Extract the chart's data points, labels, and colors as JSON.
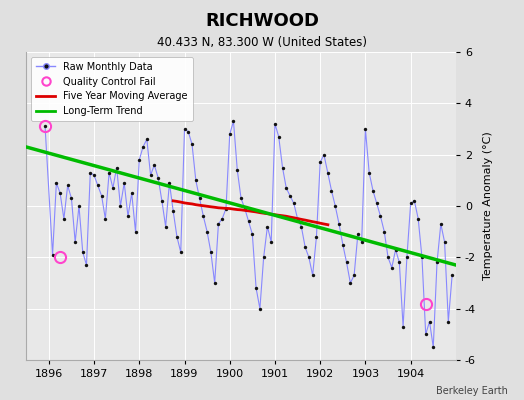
{
  "title": "RICHWOOD",
  "subtitle": "40.433 N, 83.300 W (United States)",
  "ylabel": "Temperature Anomaly (°C)",
  "credit": "Berkeley Earth",
  "ylim": [
    -6,
    6
  ],
  "xlim": [
    1895.5,
    1905.0
  ],
  "xticks": [
    1896,
    1897,
    1898,
    1899,
    1900,
    1901,
    1902,
    1903,
    1904
  ],
  "yticks": [
    -6,
    -4,
    -2,
    0,
    2,
    4,
    6
  ],
  "fig_bg": "#e0e0e0",
  "ax_bg": "#e8e8e8",
  "grid_color": "#ffffff",
  "raw_line_color": "#8888ff",
  "raw_dot_color": "#111111",
  "moving_avg_color": "#dd0000",
  "trend_color": "#00bb00",
  "qc_color": "#ff44cc",
  "monthly_x": [
    1895.917,
    1896.083,
    1896.167,
    1896.25,
    1896.333,
    1896.417,
    1896.5,
    1896.583,
    1896.667,
    1896.75,
    1896.833,
    1896.917,
    1897.0,
    1897.083,
    1897.167,
    1897.25,
    1897.333,
    1897.417,
    1897.5,
    1897.583,
    1897.667,
    1897.75,
    1897.833,
    1897.917,
    1898.0,
    1898.083,
    1898.167,
    1898.25,
    1898.333,
    1898.417,
    1898.5,
    1898.583,
    1898.667,
    1898.75,
    1898.833,
    1898.917,
    1899.0,
    1899.083,
    1899.167,
    1899.25,
    1899.333,
    1899.417,
    1899.5,
    1899.583,
    1899.667,
    1899.75,
    1899.833,
    1899.917,
    1900.0,
    1900.083,
    1900.167,
    1900.25,
    1900.333,
    1900.417,
    1900.5,
    1900.583,
    1900.667,
    1900.75,
    1900.833,
    1900.917,
    1901.0,
    1901.083,
    1901.167,
    1901.25,
    1901.333,
    1901.417,
    1901.5,
    1901.583,
    1901.667,
    1901.75,
    1901.833,
    1901.917,
    1902.0,
    1902.083,
    1902.167,
    1902.25,
    1902.333,
    1902.417,
    1902.5,
    1902.583,
    1902.667,
    1902.75,
    1902.833,
    1902.917,
    1903.0,
    1903.083,
    1903.167,
    1903.25,
    1903.333,
    1903.417,
    1903.5,
    1903.583,
    1903.667,
    1903.75,
    1903.833,
    1903.917,
    1904.0,
    1904.083,
    1904.167,
    1904.25,
    1904.333,
    1904.417,
    1904.5,
    1904.583,
    1904.667,
    1904.75,
    1904.833,
    1904.917
  ],
  "monthly_y": [
    3.1,
    -1.9,
    0.9,
    0.5,
    -0.5,
    0.8,
    0.3,
    -1.4,
    0.0,
    -1.8,
    -2.3,
    1.3,
    1.2,
    0.8,
    0.4,
    -0.5,
    1.3,
    0.7,
    1.5,
    0.0,
    0.9,
    -0.4,
    0.5,
    -1.0,
    1.8,
    2.3,
    2.6,
    1.2,
    1.6,
    1.1,
    0.2,
    -0.8,
    0.9,
    -0.2,
    -1.2,
    -1.8,
    3.0,
    2.9,
    2.4,
    1.0,
    0.3,
    -0.4,
    -1.0,
    -1.8,
    -3.0,
    -0.7,
    -0.5,
    -0.1,
    2.8,
    3.3,
    1.4,
    0.3,
    -0.1,
    -0.6,
    -1.1,
    -3.2,
    -4.0,
    -2.0,
    -0.8,
    -1.4,
    3.2,
    2.7,
    1.5,
    0.7,
    0.4,
    0.1,
    -0.5,
    -0.8,
    -1.6,
    -2.0,
    -2.7,
    -1.2,
    1.7,
    2.0,
    1.3,
    0.6,
    0.0,
    -0.7,
    -1.5,
    -2.2,
    -3.0,
    -2.7,
    -1.1,
    -1.4,
    3.0,
    1.3,
    0.6,
    0.1,
    -0.4,
    -1.0,
    -2.0,
    -2.4,
    -1.7,
    -2.2,
    -4.7,
    -2.0,
    0.1,
    0.2,
    -0.5,
    -2.0,
    -5.0,
    -4.5,
    -5.5,
    -2.2,
    -0.7,
    -1.4,
    -4.5,
    -2.7
  ],
  "moving_avg_x": [
    1898.75,
    1898.83,
    1898.92,
    1899.0,
    1899.08,
    1899.17,
    1899.25,
    1899.33,
    1899.42,
    1899.5,
    1899.58,
    1899.67,
    1899.75,
    1899.83,
    1899.92,
    1900.0,
    1900.08,
    1900.17,
    1900.25,
    1900.33,
    1900.42,
    1900.5,
    1900.58,
    1900.67,
    1900.75,
    1900.83,
    1900.92,
    1901.0,
    1901.08,
    1901.17,
    1901.25,
    1901.33,
    1901.42,
    1901.5,
    1901.58,
    1901.67,
    1901.75,
    1901.83,
    1901.92,
    1902.0,
    1902.08,
    1902.17
  ],
  "moving_avg_y": [
    0.2,
    0.18,
    0.15,
    0.12,
    0.1,
    0.08,
    0.05,
    0.03,
    0.01,
    -0.01,
    -0.03,
    -0.05,
    -0.07,
    -0.08,
    -0.09,
    -0.1,
    -0.12,
    -0.14,
    -0.15,
    -0.17,
    -0.19,
    -0.21,
    -0.23,
    -0.26,
    -0.28,
    -0.3,
    -0.32,
    -0.34,
    -0.36,
    -0.38,
    -0.4,
    -0.43,
    -0.46,
    -0.49,
    -0.52,
    -0.55,
    -0.58,
    -0.61,
    -0.64,
    -0.67,
    -0.7,
    -0.73
  ],
  "trend_x": [
    1895.5,
    1905.0
  ],
  "trend_y": [
    2.3,
    -2.3
  ],
  "qc_points": [
    [
      1895.917,
      3.1
    ],
    [
      1896.25,
      -2.0
    ],
    [
      1904.333,
      -3.8
    ]
  ]
}
